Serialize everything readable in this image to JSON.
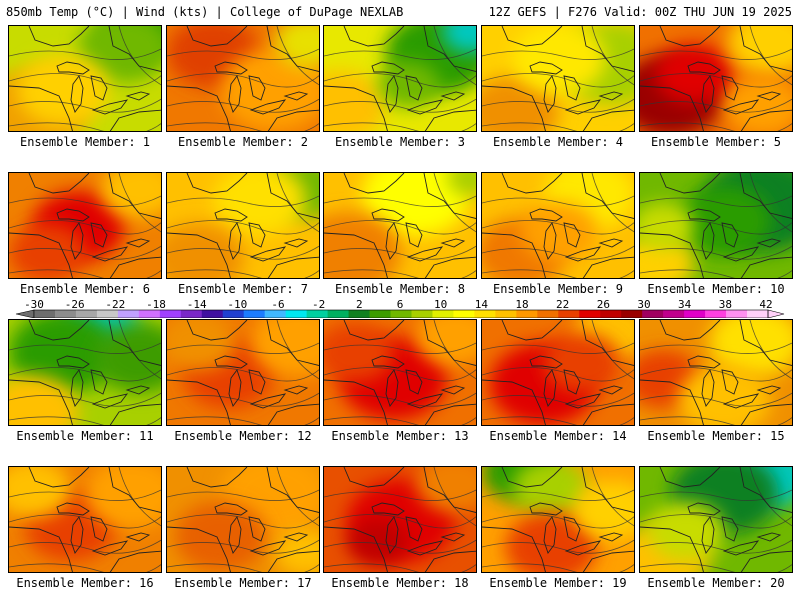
{
  "header": {
    "left": "850mb Temp (°C) | Wind (kts) | College of DuPage NEXLAB",
    "right": "12Z GEFS | F276 Valid: 00Z THU JUN 19 2025"
  },
  "colorbar": {
    "tick_labels": [
      "-30",
      "-26",
      "-22",
      "-18",
      "-14",
      "-10",
      "-6",
      "-2",
      "2",
      "6",
      "10",
      "14",
      "18",
      "22",
      "26",
      "30",
      "34",
      "38",
      "42"
    ],
    "colors": [
      "#6e6e6e",
      "#8c8c8c",
      "#a7a7a7",
      "#c8c8c8",
      "#c0a0ff",
      "#d070ff",
      "#a040ff",
      "#7a28c8",
      "#4010a0",
      "#2040d0",
      "#1c7cff",
      "#40b8ff",
      "#00e8f0",
      "#00d0a0",
      "#00b060",
      "#108020",
      "#3c9c00",
      "#70b800",
      "#a8d000",
      "#e0f000",
      "#ffff00",
      "#ffe000",
      "#ffc000",
      "#ff9800",
      "#f07000",
      "#e84000",
      "#e00000",
      "#c00000",
      "#9a0000",
      "#a00060",
      "#c0008c",
      "#e000c8",
      "#ff40e0",
      "#ff90f0",
      "#ffd0f8"
    ]
  },
  "panels": [
    {
      "caption": "Ensemble Member: 1",
      "base": "#c8dc00",
      "blobs": [
        [
          "#2b9c00",
          0.85,
          0.05,
          0.25
        ],
        [
          "#70b800",
          0.75,
          0.2,
          0.3
        ],
        [
          "#f0a000",
          0.15,
          0.8,
          0.35
        ],
        [
          "#ffd000",
          0.35,
          0.6,
          0.3
        ]
      ]
    },
    {
      "caption": "Ensemble Member: 2",
      "base": "#f07800",
      "blobs": [
        [
          "#e04000",
          0.3,
          0.25,
          0.3
        ],
        [
          "#ffa000",
          0.7,
          0.6,
          0.35
        ],
        [
          "#e8e000",
          0.92,
          0.15,
          0.22
        ]
      ]
    },
    {
      "caption": "Ensemble Member: 3",
      "base": "#e8e800",
      "blobs": [
        [
          "#2b9c00",
          0.75,
          0.25,
          0.35
        ],
        [
          "#00c8c0",
          0.95,
          0.05,
          0.18
        ],
        [
          "#ffc000",
          0.1,
          0.75,
          0.3
        ],
        [
          "#70b800",
          0.55,
          0.55,
          0.2
        ]
      ]
    },
    {
      "caption": "Ensemble Member: 4",
      "base": "#ffd000",
      "blobs": [
        [
          "#a8d000",
          0.85,
          0.35,
          0.35
        ],
        [
          "#f09000",
          0.2,
          0.8,
          0.3
        ],
        [
          "#ffe800",
          0.5,
          0.3,
          0.3
        ]
      ]
    },
    {
      "caption": "Ensemble Member: 5",
      "base": "#f07000",
      "blobs": [
        [
          "#9a0000",
          0.2,
          0.65,
          0.35
        ],
        [
          "#e00000",
          0.35,
          0.45,
          0.25
        ],
        [
          "#ffd000",
          0.85,
          0.15,
          0.28
        ],
        [
          "#ffa000",
          0.8,
          0.75,
          0.25
        ]
      ]
    },
    {
      "caption": "Ensemble Member: 6",
      "base": "#f08000",
      "blobs": [
        [
          "#e00000",
          0.45,
          0.5,
          0.3
        ],
        [
          "#ffc000",
          0.85,
          0.15,
          0.25
        ],
        [
          "#e84000",
          0.25,
          0.75,
          0.25
        ]
      ]
    },
    {
      "caption": "Ensemble Member: 7",
      "base": "#ffc000",
      "blobs": [
        [
          "#70b800",
          0.9,
          0.15,
          0.25
        ],
        [
          "#ffe000",
          0.6,
          0.25,
          0.3
        ],
        [
          "#f09000",
          0.2,
          0.8,
          0.3
        ]
      ]
    },
    {
      "caption": "Ensemble Member: 8",
      "base": "#ffc000",
      "blobs": [
        [
          "#ffff00",
          0.6,
          0.2,
          0.35
        ],
        [
          "#f08000",
          0.15,
          0.75,
          0.35
        ],
        [
          "#a8d000",
          0.95,
          0.05,
          0.15
        ]
      ]
    },
    {
      "caption": "Ensemble Member: 9",
      "base": "#ffc000",
      "blobs": [
        [
          "#ffe800",
          0.7,
          0.2,
          0.3
        ],
        [
          "#f07800",
          0.25,
          0.75,
          0.3
        ],
        [
          "#ffa000",
          0.5,
          0.55,
          0.25
        ]
      ]
    },
    {
      "caption": "Ensemble Member: 10",
      "base": "#70b800",
      "blobs": [
        [
          "#108020",
          0.8,
          0.3,
          0.4
        ],
        [
          "#2b9c00",
          0.55,
          0.45,
          0.3
        ],
        [
          "#ffd000",
          0.1,
          0.85,
          0.25
        ],
        [
          "#c8dc00",
          0.15,
          0.5,
          0.2
        ]
      ]
    },
    {
      "caption": "Ensemble Member: 11",
      "base": "#a8d000",
      "blobs": [
        [
          "#00c8c0",
          0.6,
          0.1,
          0.25
        ],
        [
          "#2b9c00",
          0.35,
          0.3,
          0.35
        ],
        [
          "#3c9c00",
          0.85,
          0.35,
          0.3
        ],
        [
          "#ffc000",
          0.15,
          0.85,
          0.3
        ]
      ]
    },
    {
      "caption": "Ensemble Member: 12",
      "base": "#f07800",
      "blobs": [
        [
          "#e84000",
          0.4,
          0.5,
          0.3
        ],
        [
          "#ffa000",
          0.85,
          0.2,
          0.3
        ],
        [
          "#f09000",
          0.2,
          0.2,
          0.25
        ]
      ]
    },
    {
      "caption": "Ensemble Member: 13",
      "base": "#f07000",
      "blobs": [
        [
          "#e00000",
          0.45,
          0.55,
          0.35
        ],
        [
          "#ffa000",
          0.85,
          0.15,
          0.25
        ],
        [
          "#e84000",
          0.2,
          0.3,
          0.25
        ]
      ]
    },
    {
      "caption": "Ensemble Member: 14",
      "base": "#f07000",
      "blobs": [
        [
          "#e00000",
          0.4,
          0.6,
          0.35
        ],
        [
          "#ffc000",
          0.85,
          0.1,
          0.25
        ],
        [
          "#e84000",
          0.65,
          0.4,
          0.25
        ]
      ]
    },
    {
      "caption": "Ensemble Member: 15",
      "base": "#f09000",
      "blobs": [
        [
          "#ffe000",
          0.75,
          0.2,
          0.3
        ],
        [
          "#e84000",
          0.15,
          0.55,
          0.25
        ],
        [
          "#ffc000",
          0.55,
          0.75,
          0.3
        ]
      ]
    },
    {
      "caption": "Ensemble Member: 16",
      "base": "#f08000",
      "blobs": [
        [
          "#e84000",
          0.4,
          0.55,
          0.3
        ],
        [
          "#ffa000",
          0.8,
          0.25,
          0.3
        ],
        [
          "#ffc000",
          0.15,
          0.2,
          0.25
        ]
      ]
    },
    {
      "caption": "Ensemble Member: 17",
      "base": "#f09000",
      "blobs": [
        [
          "#ffa000",
          0.7,
          0.25,
          0.35
        ],
        [
          "#e86000",
          0.35,
          0.65,
          0.3
        ],
        [
          "#ffc000",
          0.9,
          0.8,
          0.2
        ]
      ]
    },
    {
      "caption": "Ensemble Member: 18",
      "base": "#e85000",
      "blobs": [
        [
          "#e00000",
          0.5,
          0.5,
          0.35
        ],
        [
          "#f08000",
          0.85,
          0.15,
          0.25
        ],
        [
          "#c00000",
          0.35,
          0.7,
          0.2
        ]
      ]
    },
    {
      "caption": "Ensemble Member: 19",
      "base": "#ffa000",
      "blobs": [
        [
          "#2b9c00",
          0.25,
          0.05,
          0.25
        ],
        [
          "#a8d000",
          0.45,
          0.2,
          0.25
        ],
        [
          "#e84000",
          0.45,
          0.75,
          0.3
        ],
        [
          "#ffd000",
          0.85,
          0.4,
          0.25
        ]
      ]
    },
    {
      "caption": "Ensemble Member: 20",
      "base": "#70b800",
      "blobs": [
        [
          "#00c8c0",
          0.85,
          0.1,
          0.25
        ],
        [
          "#108020",
          0.55,
          0.25,
          0.35
        ],
        [
          "#ffc000",
          0.15,
          0.85,
          0.3
        ],
        [
          "#c8dc00",
          0.3,
          0.6,
          0.25
        ]
      ]
    }
  ]
}
